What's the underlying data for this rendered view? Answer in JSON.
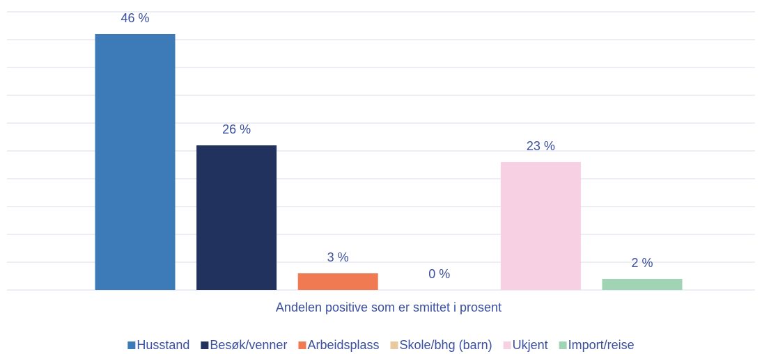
{
  "chart_data": {
    "type": "bar",
    "categories": [
      "Andelen positive som er smittet i prosent"
    ],
    "series": [
      {
        "name": "Husstand",
        "color": "#3d7ab8",
        "values": [
          46
        ],
        "value_labels": [
          "46 %"
        ]
      },
      {
        "name": "Besøk/venner",
        "color": "#22325f",
        "values": [
          26
        ],
        "value_labels": [
          "26 %"
        ]
      },
      {
        "name": "Arbeidsplass",
        "color": "#f07b52",
        "values": [
          3
        ],
        "value_labels": [
          "3 %"
        ]
      },
      {
        "name": "Skole/bhg (barn)",
        "color": "#e9c9a0",
        "values": [
          0
        ],
        "value_labels": [
          "0 %"
        ]
      },
      {
        "name": "Ukjent",
        "color": "#f7d0e3",
        "values": [
          23
        ],
        "value_labels": [
          "23 %"
        ]
      },
      {
        "name": "Import/reise",
        "color": "#a0d4b4",
        "values": [
          2
        ],
        "value_labels": [
          "2 %"
        ]
      }
    ],
    "ylim": [
      0,
      50
    ],
    "yticks": [
      0,
      5,
      10,
      15,
      20,
      25,
      30,
      35,
      40,
      45,
      50
    ],
    "grid": true,
    "legend": "bottom"
  }
}
